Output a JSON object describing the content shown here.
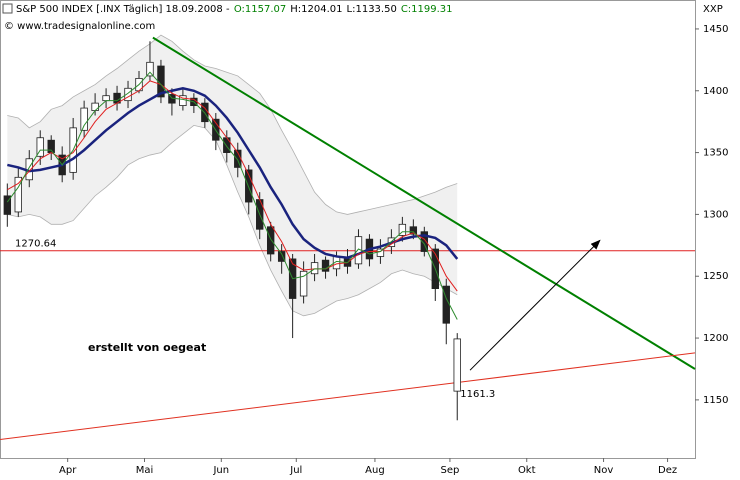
{
  "chart_data": {
    "type": "candlestick",
    "header": {
      "title": "S&P 500 INDEX [.INX  Täglich] 18.09.2008 -",
      "open": "O:1157.07",
      "high": "H:1204.01",
      "low": "L:1133.50",
      "close": "C:1199.31"
    },
    "watermark": "© www.tradesignalonline.com",
    "annotation": "erstellt von oegeat",
    "axis_label": "XXP",
    "xlim": [
      0,
      190
    ],
    "xticks": [
      {
        "value": 18.5,
        "label": "Apr"
      },
      {
        "value": 39.5,
        "label": "Mai"
      },
      {
        "value": 60.5,
        "label": "Jun"
      },
      {
        "value": 81,
        "label": "Jul"
      },
      {
        "value": 102.5,
        "label": "Aug"
      },
      {
        "value": 123,
        "label": "Sep"
      },
      {
        "value": 144,
        "label": "Okt"
      },
      {
        "value": 165,
        "label": "Nov"
      },
      {
        "value": 182.5,
        "label": "Dez"
      }
    ],
    "ylim": [
      1103,
      1473.4
    ],
    "yticks": [
      1150,
      1200,
      1250,
      1300,
      1350,
      1400,
      1450
    ],
    "x": [
      2,
      5,
      8,
      11,
      14,
      17,
      20,
      23,
      26,
      29,
      32,
      35,
      38,
      41,
      44,
      47,
      50,
      53,
      56,
      59,
      62,
      65,
      68,
      71,
      74,
      77,
      80,
      83,
      86,
      89,
      92,
      95,
      98,
      101,
      104,
      107,
      110,
      113,
      116,
      119,
      122,
      125
    ],
    "open": [
      1315,
      1302,
      1328,
      1347,
      1360,
      1348,
      1334,
      1368,
      1384,
      1392,
      1398,
      1392,
      1400,
      1412,
      1420,
      1397,
      1388,
      1394,
      1390,
      1377,
      1362,
      1352,
      1336,
      1312,
      1290,
      1270,
      1264,
      1234,
      1252,
      1263,
      1256,
      1264,
      1260,
      1280,
      1266,
      1274,
      1283,
      1290,
      1286,
      1272,
      1242,
      1157.07
    ],
    "high": [
      1325,
      1338,
      1352,
      1368,
      1364,
      1355,
      1378,
      1392,
      1398,
      1402,
      1404,
      1408,
      1416,
      1440,
      1425,
      1402,
      1402,
      1398,
      1394,
      1382,
      1368,
      1358,
      1340,
      1318,
      1294,
      1276,
      1268,
      1262,
      1268,
      1266,
      1270,
      1272,
      1288,
      1284,
      1280,
      1288,
      1298,
      1296,
      1290,
      1276,
      1248,
      1204.01
    ],
    "low": [
      1290,
      1298,
      1322,
      1340,
      1344,
      1326,
      1328,
      1362,
      1380,
      1386,
      1384,
      1386,
      1398,
      1408,
      1390,
      1380,
      1384,
      1382,
      1370,
      1352,
      1342,
      1330,
      1300,
      1280,
      1262,
      1252,
      1200,
      1228,
      1246,
      1248,
      1250,
      1252,
      1256,
      1258,
      1260,
      1268,
      1278,
      1280,
      1266,
      1230,
      1195,
      1133.5
    ],
    "close": [
      1300,
      1330,
      1345,
      1362,
      1350,
      1332,
      1370,
      1386,
      1390,
      1396,
      1390,
      1402,
      1410,
      1423,
      1395,
      1390,
      1396,
      1388,
      1375,
      1360,
      1350,
      1338,
      1310,
      1288,
      1268,
      1262,
      1232,
      1254,
      1261,
      1254,
      1266,
      1258,
      1282,
      1264,
      1272,
      1281,
      1292,
      1284,
      1270,
      1240,
      1212,
      1199.31
    ],
    "band": {
      "color": "#b0b0b0",
      "fill": "#f0f0f0",
      "upper": [
        1380,
        1378,
        1370,
        1375,
        1385,
        1388,
        1395,
        1400,
        1405,
        1412,
        1418,
        1425,
        1432,
        1438,
        1445,
        1440,
        1432,
        1425,
        1420,
        1418,
        1415,
        1412,
        1405,
        1398,
        1385,
        1368,
        1352,
        1335,
        1318,
        1308,
        1302,
        1300,
        1302,
        1304,
        1306,
        1308,
        1310,
        1312,
        1315,
        1318,
        1322,
        1325
      ],
      "lower": [
        1300,
        1298,
        1300,
        1298,
        1292,
        1292,
        1295,
        1305,
        1315,
        1322,
        1330,
        1340,
        1345,
        1348,
        1350,
        1358,
        1365,
        1372,
        1370,
        1360,
        1340,
        1318,
        1298,
        1275,
        1255,
        1238,
        1222,
        1218,
        1220,
        1225,
        1230,
        1232,
        1235,
        1240,
        1245,
        1252,
        1255,
        1252,
        1250,
        1245,
        1240,
        1235
      ]
    },
    "series": [
      {
        "color": "#1a237e",
        "width": 2.5,
        "values": [
          1340,
          1338,
          1335,
          1336,
          1338,
          1340,
          1345,
          1352,
          1360,
          1368,
          1375,
          1382,
          1388,
          1393,
          1398,
          1400,
          1402,
          1400,
          1396,
          1388,
          1378,
          1366,
          1352,
          1338,
          1322,
          1308,
          1292,
          1280,
          1273,
          1268,
          1266,
          1265,
          1268,
          1272,
          1274,
          1277,
          1280,
          1282,
          1283,
          1281,
          1275,
          1264
        ]
      },
      {
        "color": "#e02020",
        "width": 1,
        "values": [
          1320,
          1325,
          1335,
          1345,
          1350,
          1345,
          1350,
          1362,
          1375,
          1385,
          1390,
          1395,
          1400,
          1408,
          1405,
          1398,
          1394,
          1393,
          1386,
          1374,
          1362,
          1350,
          1332,
          1312,
          1292,
          1278,
          1260,
          1255,
          1256,
          1256,
          1260,
          1261,
          1268,
          1270,
          1270,
          1276,
          1282,
          1285,
          1280,
          1268,
          1250,
          1238
        ]
      },
      {
        "color": "#2e8b2e",
        "width": 1,
        "values": [
          1310,
          1322,
          1338,
          1352,
          1352,
          1340,
          1352,
          1372,
          1384,
          1392,
          1392,
          1398,
          1405,
          1415,
          1405,
          1394,
          1393,
          1391,
          1382,
          1368,
          1355,
          1344,
          1322,
          1300,
          1280,
          1268,
          1248,
          1250,
          1256,
          1256,
          1262,
          1261,
          1272,
          1268,
          1270,
          1278,
          1286,
          1286,
          1276,
          1256,
          1232,
          1215
        ]
      }
    ],
    "hline": 1270.64,
    "hline_color": "#e02020",
    "low_marker": {
      "x": 125,
      "value": 1161.3
    },
    "trendlines": [
      {
        "color": "#008000",
        "width": 2,
        "x": [
          41.8,
          190
        ],
        "values": [
          1443,
          1175
        ]
      },
      {
        "color": "#e03020",
        "width": 1,
        "x": [
          0,
          190
        ],
        "values": [
          1118,
          1188
        ]
      }
    ],
    "arrow": {
      "x": [
        128.5,
        164
      ],
      "values": [
        1174,
        1279
      ]
    }
  }
}
